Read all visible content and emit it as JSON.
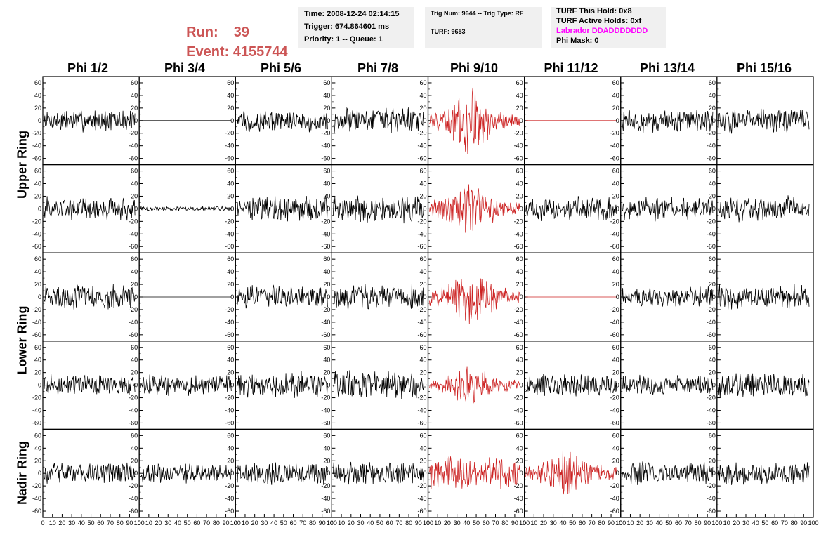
{
  "header": {
    "run_label": "Run:",
    "run_value": "39",
    "event_label": "Event:",
    "event_value": "4155744"
  },
  "info_box_1": {
    "time": "Time: 2008-12-24 02:14:15",
    "trigger": "Trigger: 674.864601 ms",
    "priority": "Priority: 1 -- Queue: 1"
  },
  "info_box_2": {
    "trig": "Trig Num: 9644 -- Trig Type: RF",
    "turf": "TURF: 9653"
  },
  "info_box_3": {
    "hold": "TURF This Hold: 0x8",
    "active": "TURF Active Holds: 0xf",
    "labrador": "Labrador DDADDDDDDD",
    "phimask": "Phi Mask: 0"
  },
  "colors": {
    "header_red": "#cc5555",
    "labrador_magenta": "#ff00ff",
    "trace_black": "#000000",
    "trace_red": "#cc2222"
  },
  "chart_data": {
    "type": "line",
    "columns": [
      "Phi 1/2",
      "Phi 3/4",
      "Phi 5/6",
      "Phi 7/8",
      "Phi 9/10",
      "Phi 11/12",
      "Phi 13/14",
      "Phi 15/16"
    ],
    "rows": [
      {
        "label": "",
        "group": "Upper Ring"
      },
      {
        "label": "",
        "group": "Upper Ring"
      },
      {
        "label": "",
        "group": "Lower Ring"
      },
      {
        "label": "",
        "group": "Lower Ring"
      },
      {
        "label": "Nadir Ring",
        "group": "Nadir Ring"
      }
    ],
    "row_groups": [
      "Upper Ring",
      "Lower Ring",
      "Nadir Ring"
    ],
    "ylim": [
      -70,
      70
    ],
    "yticks": [
      -60,
      -40,
      -20,
      0,
      20,
      40,
      60
    ],
    "xlim": [
      0,
      100
    ],
    "xticks": [
      "0",
      "10",
      "20",
      "30",
      "40",
      "50",
      "60",
      "70",
      "80",
      "90",
      "100"
    ],
    "grid": false,
    "panels": [
      [
        {
          "amp": 14,
          "color": "black"
        },
        {
          "amp": 0,
          "color": "black"
        },
        {
          "amp": 14,
          "color": "black"
        },
        {
          "amp": 16,
          "color": "black"
        },
        {
          "amp": 26,
          "color": "red",
          "burst": true
        },
        {
          "amp": 0,
          "color": "red"
        },
        {
          "amp": 14,
          "color": "black"
        },
        {
          "amp": 16,
          "color": "black"
        }
      ],
      [
        {
          "amp": 15,
          "color": "black"
        },
        {
          "amp": 3,
          "color": "black"
        },
        {
          "amp": 16,
          "color": "black"
        },
        {
          "amp": 17,
          "color": "black"
        },
        {
          "amp": 22,
          "color": "red",
          "burst": true
        },
        {
          "amp": 15,
          "color": "black"
        },
        {
          "amp": 15,
          "color": "black"
        },
        {
          "amp": 16,
          "color": "black"
        }
      ],
      [
        {
          "amp": 16,
          "color": "black"
        },
        {
          "amp": 0,
          "color": "black"
        },
        {
          "amp": 14,
          "color": "black"
        },
        {
          "amp": 16,
          "color": "black"
        },
        {
          "amp": 24,
          "color": "red",
          "burst": true
        },
        {
          "amp": 0,
          "color": "red"
        },
        {
          "amp": 13,
          "color": "black"
        },
        {
          "amp": 15,
          "color": "black"
        }
      ],
      [
        {
          "amp": 13,
          "color": "black"
        },
        {
          "amp": 13,
          "color": "black"
        },
        {
          "amp": 16,
          "color": "black"
        },
        {
          "amp": 18,
          "color": "black"
        },
        {
          "amp": 16,
          "color": "red",
          "burst": true
        },
        {
          "amp": 14,
          "color": "black"
        },
        {
          "amp": 13,
          "color": "black"
        },
        {
          "amp": 15,
          "color": "black"
        }
      ],
      [
        {
          "amp": 14,
          "color": "black"
        },
        {
          "amp": 12,
          "color": "black"
        },
        {
          "amp": 14,
          "color": "black"
        },
        {
          "amp": 15,
          "color": "black"
        },
        {
          "amp": 20,
          "color": "red"
        },
        {
          "amp": 20,
          "color": "red",
          "burst": true
        },
        {
          "amp": 14,
          "color": "black"
        },
        {
          "amp": 14,
          "color": "black"
        }
      ]
    ]
  }
}
